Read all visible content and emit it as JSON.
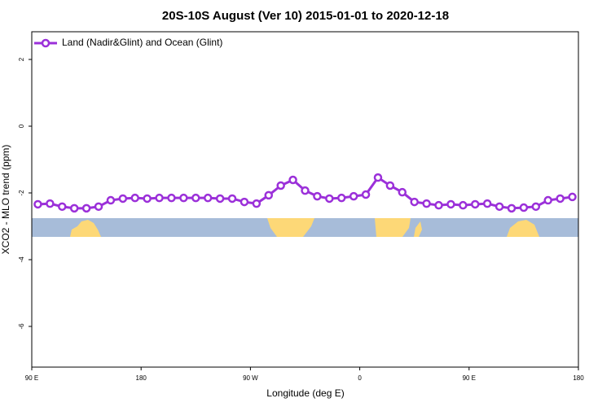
{
  "chart_data": {
    "type": "line",
    "title": "20S-10S August (Ver 10)   2015-01-01 to 2020-12-18",
    "x_label": "Longitude (deg E)",
    "y_label": "XCO2 - MLO trend (ppm)",
    "x": [
      95,
      105,
      115,
      125,
      135,
      145,
      155,
      165,
      175,
      185,
      195,
      205,
      215,
      225,
      235,
      245,
      255,
      265,
      275,
      285,
      295,
      305,
      315,
      325,
      335,
      345,
      355,
      365,
      375,
      385,
      395,
      405,
      415,
      425,
      435,
      445,
      455,
      465,
      475,
      485,
      495,
      505,
      515,
      525,
      535
    ],
    "series": [
      {
        "name": "Land (Nadir&Glint) and Ocean (Glint)",
        "color": "#9b30d9",
        "values": [
          -2.34,
          -2.32,
          -2.41,
          -2.46,
          -2.46,
          -2.41,
          -2.22,
          -2.17,
          -2.15,
          -2.17,
          -2.15,
          -2.15,
          -2.15,
          -2.15,
          -2.15,
          -2.17,
          -2.17,
          -2.27,
          -2.32,
          -2.07,
          -1.78,
          -1.61,
          -1.93,
          -2.1,
          -2.17,
          -2.15,
          -2.1,
          -2.05,
          -1.54,
          -1.78,
          -1.98,
          -2.27,
          -2.32,
          -2.37,
          -2.34,
          -2.37,
          -2.34,
          -2.32,
          -2.41,
          -2.46,
          -2.44,
          -2.41,
          -2.22,
          -2.17,
          -2.12
        ]
      }
    ],
    "xlim": [
      90,
      540
    ],
    "xticks": [
      {
        "value": 90,
        "label": "90 E"
      },
      180,
      {
        "value": 270,
        "label": "90 W"
      },
      {
        "value": 360,
        "label": "0"
      },
      {
        "value": 450,
        "label": "90 E"
      },
      {
        "value": 540,
        "label": "180"
      }
    ],
    "ylim": [
      -7.22,
      2.83
    ],
    "yticks": [
      2,
      0,
      -2,
      -4,
      -6
    ],
    "legend": "top-left"
  }
}
